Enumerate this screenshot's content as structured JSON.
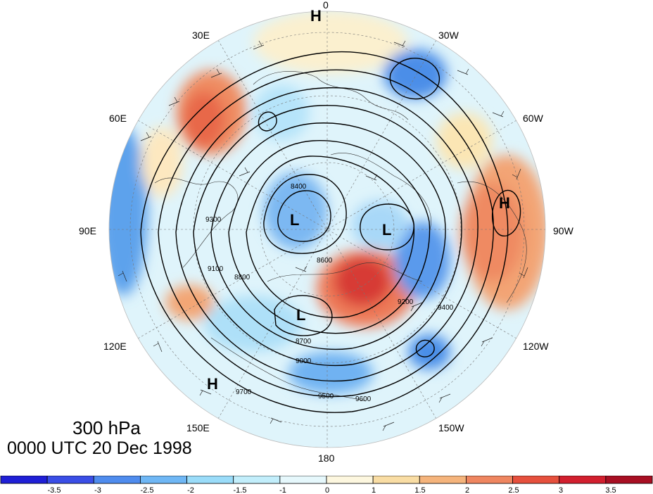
{
  "map": {
    "projection": "north polar stereographic",
    "level_label": "300 hPa",
    "time_label": "0000 UTC 20 Dec 1998",
    "longitude_labels": [
      "0",
      "30W",
      "60W",
      "90W",
      "120W",
      "150W",
      "180",
      "150E",
      "120E",
      "90E",
      "60E",
      "30E"
    ],
    "contour_labels": [
      "8400",
      "8600",
      "8700",
      "8800",
      "9000",
      "9100",
      "9200",
      "9300",
      "9400",
      "9500",
      "9600",
      "9700"
    ],
    "high_low_markers": [
      "H",
      "L",
      "L",
      "L",
      "H",
      "H"
    ],
    "shading_colors": {
      "negative": [
        "#3b39d8",
        "#3a70e0",
        "#5aa0ee",
        "#86c8f6",
        "#b6e8fb",
        "#dcf4fb"
      ],
      "positive": [
        "#fdf6dd",
        "#f9dca2",
        "#f5b07a",
        "#ef8660",
        "#e64a3c",
        "#c11830"
      ]
    }
  },
  "colorbar": {
    "tick_labels": [
      "-3.5",
      "-3",
      "-2.5",
      "-2",
      "-1.5",
      "-1",
      "0",
      "1",
      "1.5",
      "2",
      "2.5",
      "3",
      "3.5"
    ],
    "colors": [
      "#1f1fd6",
      "#3a4ee6",
      "#4f8cee",
      "#6fb7f5",
      "#9adcf9",
      "#c2eefb",
      "#e6f8fc",
      "#fdf7df",
      "#f9dda4",
      "#f5b47c",
      "#ef8660",
      "#e6503d",
      "#d21f2e",
      "#a80f23"
    ]
  }
}
